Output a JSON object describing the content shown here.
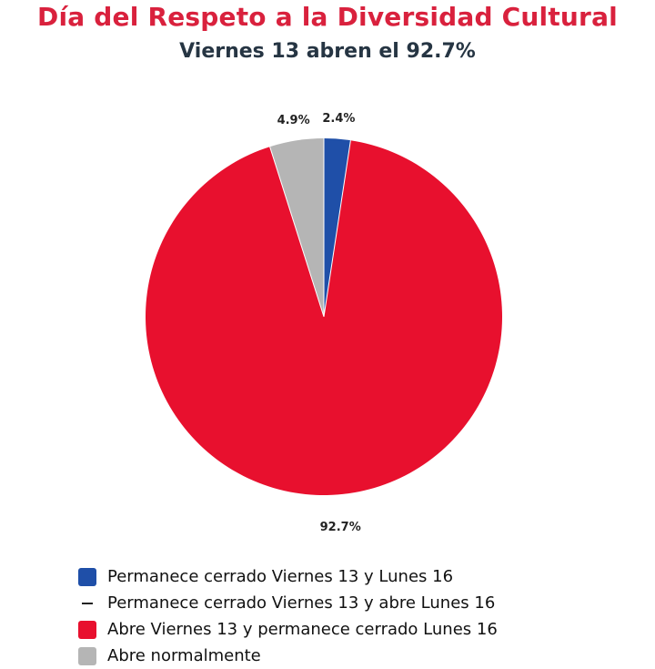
{
  "header": {
    "title": "Día del Respeto a la Diversidad Cultural",
    "subtitle": "Viernes 13 abren el 92.7%"
  },
  "chart_data": {
    "type": "pie",
    "title": "Día del Respeto a la Diversidad Cultural",
    "subtitle": "Viernes 13 abren el 92.7%",
    "categories": [
      "Permanece cerrado Viernes 13 y Lunes 16",
      "Permanece cerrado Viernes 13 y abre Lunes 16",
      "Abre Viernes 13 y permanece cerrado Lunes 16",
      "Abre normalmente"
    ],
    "values": [
      2.4,
      0,
      92.7,
      4.9
    ],
    "data_labels": [
      "2.4%",
      "",
      "92.7%",
      "4.9%"
    ],
    "colors": [
      "#1f4fa8",
      "#222222",
      "#e8102e",
      "#b5b5b5"
    ],
    "legend_position": "bottom-left",
    "start_angle_deg": 0,
    "direction": "clockwise"
  },
  "legend": {
    "items": [
      {
        "label": "Permanece cerrado Viernes 13 y Lunes 16",
        "color": "#1f4fa8",
        "marker": "square"
      },
      {
        "label": "Permanece cerrado Viernes 13 y abre Lunes 16",
        "color": "#222222",
        "marker": "dash"
      },
      {
        "label": "Abre Viernes 13 y permanece cerrado Lunes 16",
        "color": "#e8102e",
        "marker": "square"
      },
      {
        "label": "Abre normalmente",
        "color": "#b5b5b5",
        "marker": "square"
      }
    ]
  }
}
